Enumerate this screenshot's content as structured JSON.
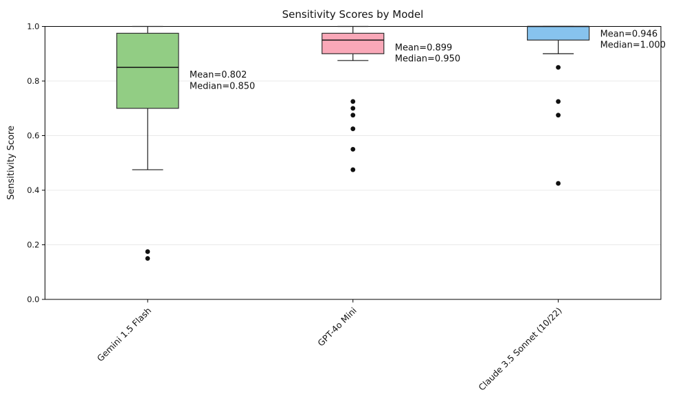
{
  "chart_data": {
    "type": "boxplot",
    "title": "Sensitivity Scores by Model",
    "ylabel": "Sensitivity Score",
    "xlabel": "",
    "ylim": [
      0.0,
      1.0
    ],
    "yticks": [
      0.0,
      0.2,
      0.4,
      0.6,
      0.8,
      1.0
    ],
    "grid": {
      "axis": "y",
      "color": "#e8e8e8"
    },
    "categories": [
      "Gemini 1.5 Flash",
      "GPT-4o Mini",
      "Claude 3.5 Sonnet (10/22)"
    ],
    "series": [
      {
        "name": "Gemini 1.5 Flash",
        "fill": "#92cd84",
        "whisker_low": 0.475,
        "q1": 0.7,
        "median": 0.85,
        "q3": 0.975,
        "whisker_high": 1.0,
        "outliers": [
          0.175,
          0.15
        ],
        "mean": 0.802,
        "annotation_lines": [
          "Mean=0.802",
          "Median=0.850"
        ]
      },
      {
        "name": "GPT-4o Mini",
        "fill": "#f9a8b8",
        "whisker_low": 0.875,
        "q1": 0.9,
        "median": 0.95,
        "q3": 0.975,
        "whisker_high": 1.0,
        "outliers": [
          0.725,
          0.7,
          0.675,
          0.625,
          0.55,
          0.475
        ],
        "mean": 0.899,
        "annotation_lines": [
          "Mean=0.899",
          "Median=0.950"
        ]
      },
      {
        "name": "Claude 3.5 Sonnet (10/22)",
        "fill": "#87c3ee",
        "whisker_low": 0.9,
        "q1": 0.95,
        "median": 1.0,
        "q3": 1.0,
        "whisker_high": 1.0,
        "outliers": [
          0.85,
          0.725,
          0.675,
          0.425
        ],
        "mean": 0.946,
        "annotation_lines": [
          "Mean=0.946",
          "Median=1.000"
        ]
      }
    ]
  }
}
